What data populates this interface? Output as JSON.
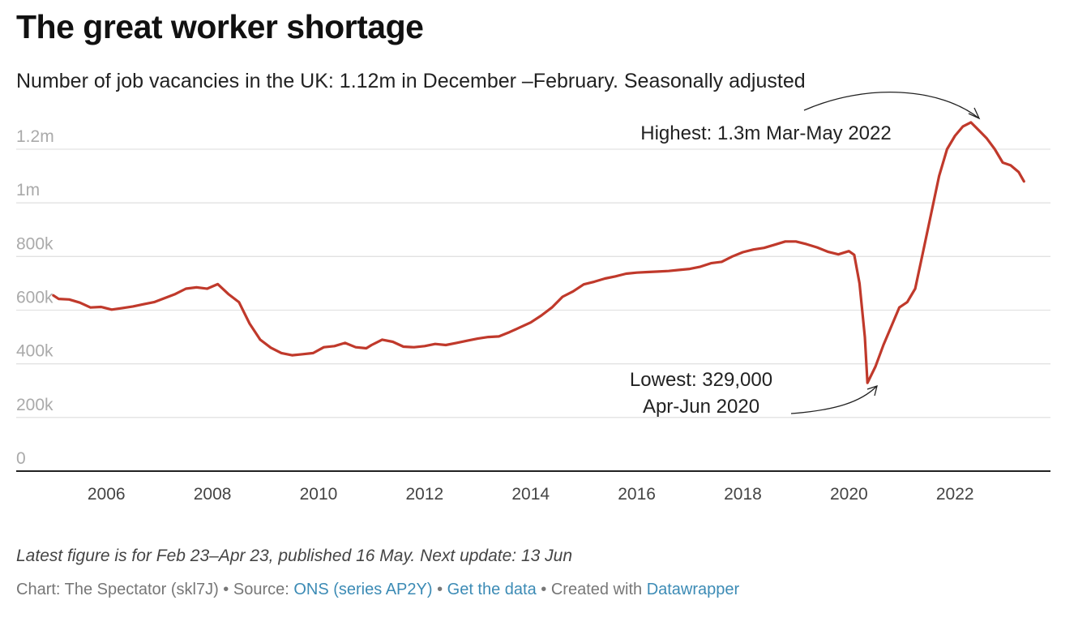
{
  "header": {
    "title": "The great worker shortage",
    "subtitle": "Number of job vacancies in the UK: 1.12m in December –February. Seasonally adjusted"
  },
  "footer": {
    "notes": "Latest figure is for Feb 23–Apr 23, published 16 May. Next update: 13 Jun",
    "chart_credit": "Chart: The Spectator (skl7J)",
    "sep1": " • ",
    "source_label": "Source: ",
    "source_link": "ONS (series AP2Y)",
    "sep2": " • ",
    "get_data": "Get the data",
    "sep3": " • ",
    "created_with": "Created with ",
    "datawrapper": "Datawrapper"
  },
  "colors": {
    "line": "#c0392b",
    "grid": "#e2e2e2",
    "axis": "#222222",
    "link": "#3c8bb5"
  },
  "chart_data": {
    "type": "line",
    "title": "The great worker shortage",
    "xlabel": "",
    "ylabel": "",
    "xlim": [
      2004.3,
      2023.8
    ],
    "ylim": [
      0,
      1200000
    ],
    "y_ticks": [
      {
        "value": 0,
        "label": "0"
      },
      {
        "value": 200000,
        "label": "200k"
      },
      {
        "value": 400000,
        "label": "400k"
      },
      {
        "value": 600000,
        "label": "600k"
      },
      {
        "value": 800000,
        "label": "800k"
      },
      {
        "value": 1000000,
        "label": "1m"
      },
      {
        "value": 1200000,
        "label": "1.2m"
      }
    ],
    "x_ticks": [
      {
        "value": 2006,
        "label": "2006"
      },
      {
        "value": 2008,
        "label": "2008"
      },
      {
        "value": 2010,
        "label": "2010"
      },
      {
        "value": 2012,
        "label": "2012"
      },
      {
        "value": 2014,
        "label": "2014"
      },
      {
        "value": 2016,
        "label": "2016"
      },
      {
        "value": 2018,
        "label": "2018"
      },
      {
        "value": 2020,
        "label": "2020"
      },
      {
        "value": 2022,
        "label": "2022"
      }
    ],
    "series": [
      {
        "name": "Job vacancies",
        "points": [
          [
            2005.0,
            655000
          ],
          [
            2005.1,
            642000
          ],
          [
            2005.3,
            640000
          ],
          [
            2005.5,
            628000
          ],
          [
            2005.7,
            610000
          ],
          [
            2005.9,
            612000
          ],
          [
            2006.1,
            602000
          ],
          [
            2006.3,
            608000
          ],
          [
            2006.5,
            614000
          ],
          [
            2006.7,
            622000
          ],
          [
            2006.9,
            630000
          ],
          [
            2007.1,
            645000
          ],
          [
            2007.3,
            660000
          ],
          [
            2007.5,
            680000
          ],
          [
            2007.7,
            685000
          ],
          [
            2007.9,
            680000
          ],
          [
            2008.1,
            697000
          ],
          [
            2008.3,
            660000
          ],
          [
            2008.5,
            630000
          ],
          [
            2008.7,
            550000
          ],
          [
            2008.9,
            490000
          ],
          [
            2009.1,
            460000
          ],
          [
            2009.3,
            440000
          ],
          [
            2009.5,
            432000
          ],
          [
            2009.7,
            436000
          ],
          [
            2009.9,
            440000
          ],
          [
            2010.1,
            462000
          ],
          [
            2010.3,
            466000
          ],
          [
            2010.5,
            478000
          ],
          [
            2010.7,
            462000
          ],
          [
            2010.9,
            458000
          ],
          [
            2011.0,
            470000
          ],
          [
            2011.2,
            490000
          ],
          [
            2011.4,
            482000
          ],
          [
            2011.6,
            464000
          ],
          [
            2011.8,
            462000
          ],
          [
            2012.0,
            466000
          ],
          [
            2012.2,
            474000
          ],
          [
            2012.4,
            470000
          ],
          [
            2012.6,
            478000
          ],
          [
            2012.8,
            486000
          ],
          [
            2013.0,
            494000
          ],
          [
            2013.2,
            500000
          ],
          [
            2013.4,
            502000
          ],
          [
            2013.6,
            518000
          ],
          [
            2013.8,
            536000
          ],
          [
            2014.0,
            554000
          ],
          [
            2014.2,
            580000
          ],
          [
            2014.4,
            610000
          ],
          [
            2014.6,
            650000
          ],
          [
            2014.8,
            670000
          ],
          [
            2015.0,
            696000
          ],
          [
            2015.2,
            706000
          ],
          [
            2015.4,
            718000
          ],
          [
            2015.6,
            726000
          ],
          [
            2015.8,
            736000
          ],
          [
            2016.0,
            740000
          ],
          [
            2016.2,
            742000
          ],
          [
            2016.4,
            744000
          ],
          [
            2016.6,
            746000
          ],
          [
            2016.8,
            750000
          ],
          [
            2017.0,
            754000
          ],
          [
            2017.2,
            762000
          ],
          [
            2017.4,
            775000
          ],
          [
            2017.6,
            780000
          ],
          [
            2017.8,
            800000
          ],
          [
            2018.0,
            816000
          ],
          [
            2018.2,
            826000
          ],
          [
            2018.4,
            832000
          ],
          [
            2018.6,
            844000
          ],
          [
            2018.8,
            856000
          ],
          [
            2019.0,
            856000
          ],
          [
            2019.2,
            846000
          ],
          [
            2019.4,
            834000
          ],
          [
            2019.6,
            818000
          ],
          [
            2019.8,
            808000
          ],
          [
            2020.0,
            820000
          ],
          [
            2020.1,
            806000
          ],
          [
            2020.2,
            700000
          ],
          [
            2020.3,
            500000
          ],
          [
            2020.35,
            329000
          ],
          [
            2020.5,
            390000
          ],
          [
            2020.65,
            470000
          ],
          [
            2020.8,
            540000
          ],
          [
            2020.95,
            610000
          ],
          [
            2021.1,
            630000
          ],
          [
            2021.25,
            680000
          ],
          [
            2021.4,
            820000
          ],
          [
            2021.55,
            960000
          ],
          [
            2021.7,
            1100000
          ],
          [
            2021.85,
            1200000
          ],
          [
            2022.0,
            1250000
          ],
          [
            2022.15,
            1285000
          ],
          [
            2022.3,
            1300000
          ],
          [
            2022.45,
            1270000
          ],
          [
            2022.6,
            1240000
          ],
          [
            2022.75,
            1200000
          ],
          [
            2022.9,
            1150000
          ],
          [
            2023.05,
            1140000
          ],
          [
            2023.2,
            1115000
          ],
          [
            2023.3,
            1080000
          ]
        ]
      }
    ],
    "annotations": [
      {
        "id": "highest",
        "lines": [
          "Highest: 1.3m Mar-May 2022"
        ],
        "target": [
          2022.3,
          1300000
        ]
      },
      {
        "id": "lowest",
        "lines": [
          "Lowest: 329,000",
          "Apr-Jun 2020"
        ],
        "target": [
          2020.35,
          329000
        ]
      }
    ]
  }
}
